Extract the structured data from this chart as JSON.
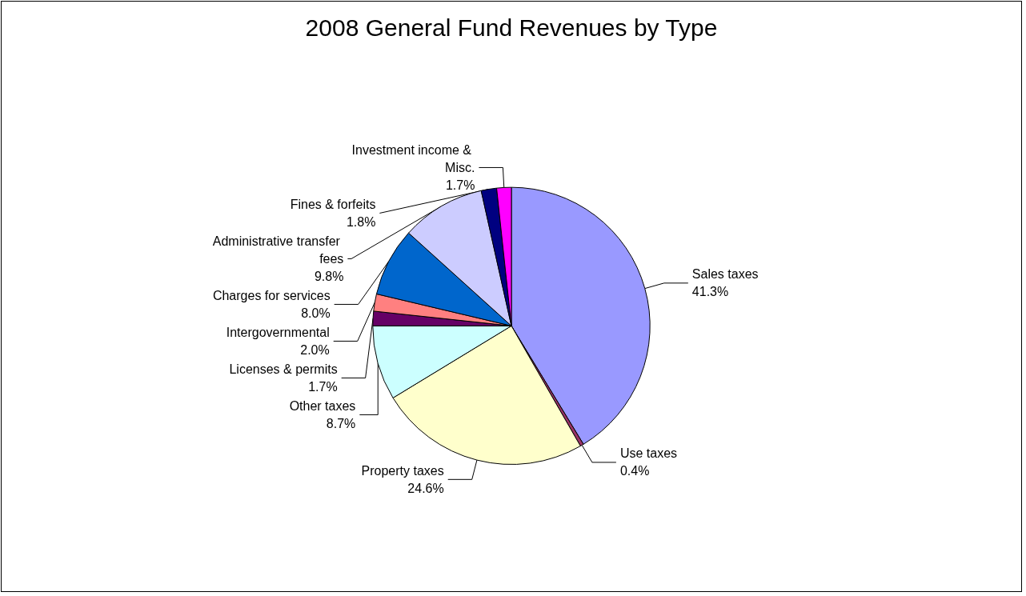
{
  "chart_data": {
    "type": "pie",
    "title": "2008 General Fund Revenues by Type",
    "categories": [
      "Sales taxes",
      "Use taxes",
      "Property taxes",
      "Other taxes",
      "Licenses & permits",
      "Intergovernmental",
      "Charges for services",
      "Administrative transfer fees",
      "Fines & forfeits",
      "Investment income & Misc."
    ],
    "values": [
      41.3,
      0.4,
      24.6,
      8.7,
      1.7,
      2.0,
      8.0,
      9.8,
      1.8,
      1.7
    ],
    "value_labels": [
      "41.3%",
      "0.4%",
      "24.6%",
      "8.7%",
      "1.7%",
      "2.0%",
      "8.0%",
      "9.8%",
      "1.8%",
      "1.7%"
    ],
    "colors": [
      "#9999ff",
      "#993366",
      "#ffffcc",
      "#ccffff",
      "#660066",
      "#ff8080",
      "#0066cc",
      "#ccccff",
      "#000080",
      "#ff00ff"
    ],
    "legend": false
  }
}
